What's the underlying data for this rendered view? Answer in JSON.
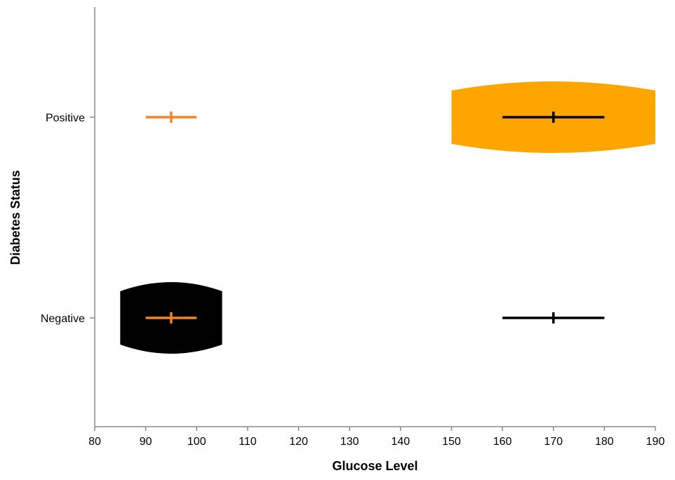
{
  "chart_data": {
    "type": "violin",
    "xlabel": "Glucose Level",
    "ylabel": "Diabetes Status",
    "xlim": [
      80,
      190
    ],
    "x_ticks": [
      "80",
      "90",
      "100",
      "110",
      "120",
      "130",
      "140",
      "150",
      "160",
      "170",
      "180",
      "190"
    ],
    "categories": [
      "Positive",
      "Negative"
    ],
    "grid": false,
    "violins": [
      {
        "category": "Positive",
        "color": "#FFA500",
        "x_min": 150,
        "x_max": 190
      },
      {
        "category": "Negative",
        "color": "#000000",
        "x_min": 85,
        "x_max": 105
      }
    ],
    "error_bars": [
      {
        "category": "Positive",
        "color": "#F28522",
        "center": 95,
        "low": 90,
        "high": 100
      },
      {
        "category": "Positive",
        "color": "#000000",
        "center": 170,
        "low": 160,
        "high": 180
      },
      {
        "category": "Negative",
        "color": "#F28522",
        "center": 95,
        "low": 90,
        "high": 100
      },
      {
        "category": "Negative",
        "color": "#000000",
        "center": 170,
        "low": 160,
        "high": 180
      }
    ]
  }
}
